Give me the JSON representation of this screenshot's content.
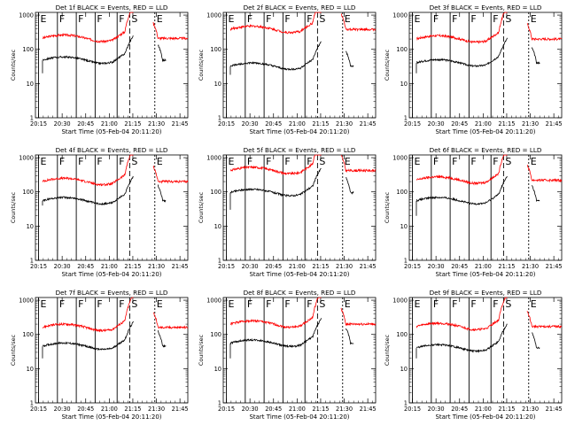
{
  "chart_data": [
    {
      "title": "Det 1f BLACK = Events, RED = LLD",
      "black_level": 48,
      "red_level": 210,
      "red_break": 50,
      "black_break_left": 20
    },
    {
      "title": "Det 2f BLACK = Events, RED = LLD",
      "black_level": 32,
      "red_level": 380,
      "red_break": 40,
      "black_break_left": 18
    },
    {
      "title": "Det 3f BLACK = Events, RED = LLD",
      "black_level": 40,
      "red_level": 200,
      "red_break": 45,
      "black_break_left": 20
    },
    {
      "title": "Det 4f BLACK = Events, RED = LLD",
      "black_level": 55,
      "red_level": 200,
      "red_break": 40,
      "black_break_left": 40
    },
    {
      "title": "Det 5f BLACK = Events, RED = LLD",
      "black_level": 95,
      "red_level": 420,
      "red_break": 50,
      "black_break_left": 30
    },
    {
      "title": "Det 6f BLACK = Events, RED = LLD",
      "black_level": 55,
      "red_level": 220,
      "red_break": 45,
      "black_break_left": 20
    },
    {
      "title": "Det 7f BLACK = Events, RED = LLD",
      "black_level": 45,
      "red_level": 160,
      "red_break": 45,
      "black_break_left": 20
    },
    {
      "title": "Det 8f BLACK = Events, RED = LLD",
      "black_level": 55,
      "red_level": 200,
      "red_break": 45,
      "black_break_left": 20
    },
    {
      "title": "Det 9f BLACK = Events, RED = LLD",
      "black_level": 40,
      "red_level": 170,
      "red_break": 40,
      "black_break_left": 20
    }
  ],
  "common": {
    "type": "line",
    "xlabel": "Start Time (05-Feb-04 20:11:20)",
    "ylabel": "Counts/sec",
    "x_range_min": [
      13,
      50
    ],
    "y_range": [
      1,
      1200
    ],
    "y_scale": "log",
    "x_ticks": [
      "20:15",
      "20:30",
      "20:45",
      "21:00",
      "21:15",
      "21:30",
      "21:45"
    ],
    "x_tick_min": [
      15,
      30,
      45,
      60,
      75,
      90,
      105
    ],
    "y_ticks": [
      "1",
      "10",
      "100",
      "1000"
    ],
    "y_tick_vals": [
      1,
      10,
      100,
      1000
    ],
    "markers": [
      {
        "label": "E",
        "t": 15,
        "style": "solid"
      },
      {
        "label": "F",
        "t": 27,
        "style": "solid"
      },
      {
        "label": "F",
        "t": 39,
        "style": "solid"
      },
      {
        "label": "F",
        "t": 51,
        "style": "solid"
      },
      {
        "label": "F",
        "t": 65,
        "style": "solid"
      },
      {
        "label": "S",
        "t": 73,
        "style": "dashed"
      },
      {
        "label": "E",
        "t": 89,
        "style": "dotted"
      }
    ],
    "series_colors": {
      "events": "#000000",
      "lld": "#ff0000"
    }
  }
}
